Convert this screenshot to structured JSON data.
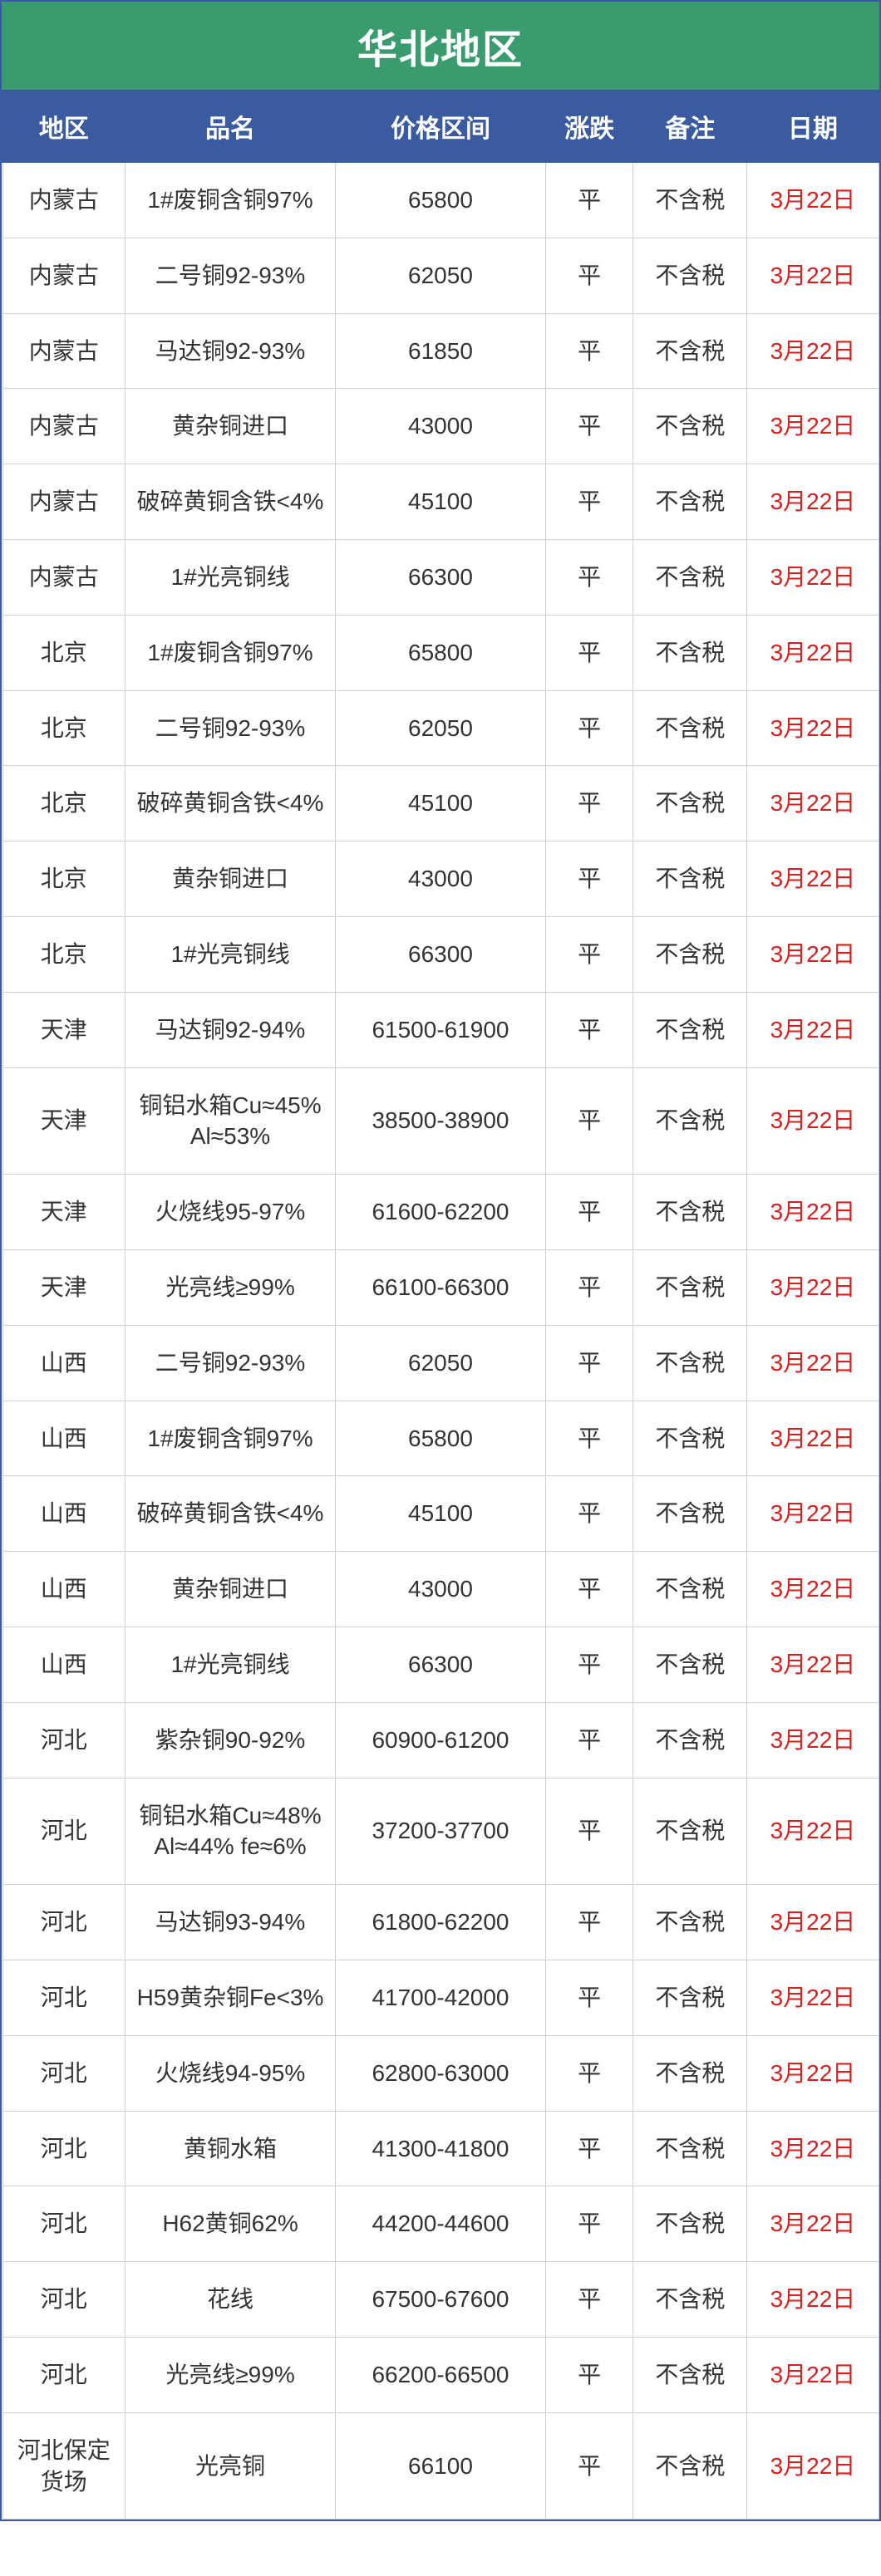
{
  "title": "华北地区",
  "columns": [
    "地区",
    "品名",
    "价格区间",
    "涨跌",
    "备注",
    "日期"
  ],
  "colors": {
    "title_bg": "#3a9b6e",
    "header_bg": "#3a5ba0",
    "header_fg": "#ffffff",
    "date_fg": "#d91e1e",
    "cell_fg": "#333333",
    "grid": "#cfcfcf",
    "page_bg": "#ffffff"
  },
  "typography": {
    "title_fontsize_pt": 36,
    "header_fontsize_pt": 22,
    "cell_fontsize_pt": 20,
    "font_family": "Microsoft YaHei"
  },
  "column_widths_pct": [
    14,
    24,
    24,
    10,
    13,
    15
  ],
  "rows": [
    {
      "region": "内蒙古",
      "name": "1#废铜含铜97%",
      "price": "65800",
      "change": "平",
      "note": "不含税",
      "date": "3月22日"
    },
    {
      "region": "内蒙古",
      "name": "二号铜92-93%",
      "price": "62050",
      "change": "平",
      "note": "不含税",
      "date": "3月22日"
    },
    {
      "region": "内蒙古",
      "name": "马达铜92-93%",
      "price": "61850",
      "change": "平",
      "note": "不含税",
      "date": "3月22日"
    },
    {
      "region": "内蒙古",
      "name": "黄杂铜进口",
      "price": "43000",
      "change": "平",
      "note": "不含税",
      "date": "3月22日"
    },
    {
      "region": "内蒙古",
      "name": "破碎黄铜含铁<4%",
      "price": "45100",
      "change": "平",
      "note": "不含税",
      "date": "3月22日"
    },
    {
      "region": "内蒙古",
      "name": "1#光亮铜线",
      "price": "66300",
      "change": "平",
      "note": "不含税",
      "date": "3月22日"
    },
    {
      "region": "北京",
      "name": "1#废铜含铜97%",
      "price": "65800",
      "change": "平",
      "note": "不含税",
      "date": "3月22日"
    },
    {
      "region": "北京",
      "name": "二号铜92-93%",
      "price": "62050",
      "change": "平",
      "note": "不含税",
      "date": "3月22日"
    },
    {
      "region": "北京",
      "name": "破碎黄铜含铁<4%",
      "price": "45100",
      "change": "平",
      "note": "不含税",
      "date": "3月22日"
    },
    {
      "region": "北京",
      "name": "黄杂铜进口",
      "price": "43000",
      "change": "平",
      "note": "不含税",
      "date": "3月22日"
    },
    {
      "region": "北京",
      "name": "1#光亮铜线",
      "price": "66300",
      "change": "平",
      "note": "不含税",
      "date": "3月22日"
    },
    {
      "region": "天津",
      "name": "马达铜92-94%",
      "price": "61500-61900",
      "change": "平",
      "note": "不含税",
      "date": "3月22日"
    },
    {
      "region": "天津",
      "name": "铜铝水箱Cu≈45% Al≈53%",
      "price": "38500-38900",
      "change": "平",
      "note": "不含税",
      "date": "3月22日"
    },
    {
      "region": "天津",
      "name": "火烧线95-97%",
      "price": "61600-62200",
      "change": "平",
      "note": "不含税",
      "date": "3月22日"
    },
    {
      "region": "天津",
      "name": "光亮线≥99%",
      "price": "66100-66300",
      "change": "平",
      "note": "不含税",
      "date": "3月22日"
    },
    {
      "region": "山西",
      "name": "二号铜92-93%",
      "price": "62050",
      "change": "平",
      "note": "不含税",
      "date": "3月22日"
    },
    {
      "region": "山西",
      "name": "1#废铜含铜97%",
      "price": "65800",
      "change": "平",
      "note": "不含税",
      "date": "3月22日"
    },
    {
      "region": "山西",
      "name": "破碎黄铜含铁<4%",
      "price": "45100",
      "change": "平",
      "note": "不含税",
      "date": "3月22日"
    },
    {
      "region": "山西",
      "name": "黄杂铜进口",
      "price": "43000",
      "change": "平",
      "note": "不含税",
      "date": "3月22日"
    },
    {
      "region": "山西",
      "name": "1#光亮铜线",
      "price": "66300",
      "change": "平",
      "note": "不含税",
      "date": "3月22日"
    },
    {
      "region": "河北",
      "name": "紫杂铜90-92%",
      "price": "60900-61200",
      "change": "平",
      "note": "不含税",
      "date": "3月22日"
    },
    {
      "region": "河北",
      "name": "铜铝水箱Cu≈48% Al≈44% fe≈6%",
      "price": "37200-37700",
      "change": "平",
      "note": "不含税",
      "date": "3月22日"
    },
    {
      "region": "河北",
      "name": "马达铜93-94%",
      "price": "61800-62200",
      "change": "平",
      "note": "不含税",
      "date": "3月22日"
    },
    {
      "region": "河北",
      "name": "H59黄杂铜Fe<3%",
      "price": "41700-42000",
      "change": "平",
      "note": "不含税",
      "date": "3月22日"
    },
    {
      "region": "河北",
      "name": "火烧线94-95%",
      "price": "62800-63000",
      "change": "平",
      "note": "不含税",
      "date": "3月22日"
    },
    {
      "region": "河北",
      "name": "黄铜水箱",
      "price": "41300-41800",
      "change": "平",
      "note": "不含税",
      "date": "3月22日"
    },
    {
      "region": "河北",
      "name": "H62黄铜62%",
      "price": "44200-44600",
      "change": "平",
      "note": "不含税",
      "date": "3月22日"
    },
    {
      "region": "河北",
      "name": "花线",
      "price": "67500-67600",
      "change": "平",
      "note": "不含税",
      "date": "3月22日"
    },
    {
      "region": "河北",
      "name": "光亮线≥99%",
      "price": "66200-66500",
      "change": "平",
      "note": "不含税",
      "date": "3月22日"
    },
    {
      "region": "河北保定货场",
      "name": "光亮铜",
      "price": "66100",
      "change": "平",
      "note": "不含税",
      "date": "3月22日"
    }
  ]
}
